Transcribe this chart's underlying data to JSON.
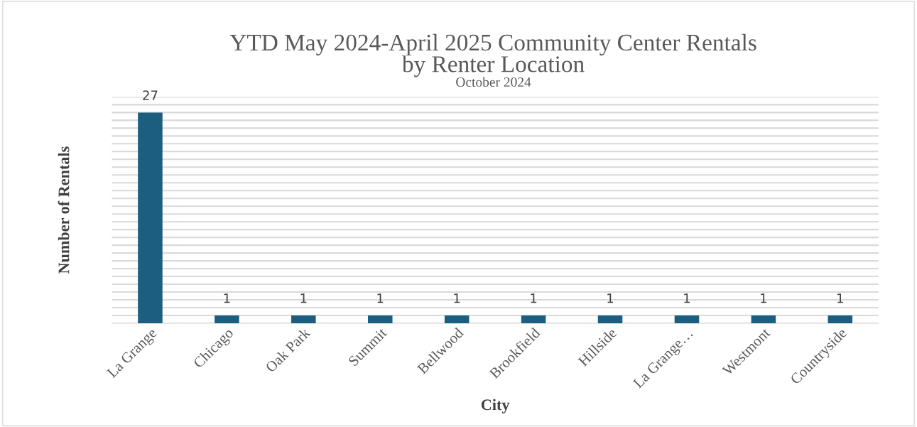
{
  "chart_data": {
    "type": "bar",
    "title": "YTD May 2024-April 2025 Community Center Rentals\nby Renter Location",
    "subtitle": "October 2024",
    "xlabel": "City",
    "ylabel": "Number of Rentals",
    "categories": [
      "La Grange",
      "Chicago",
      "Oak Park",
      "Summit",
      "Bellwood",
      "Brookfield",
      "Hillside",
      "La Grange…",
      "Westmont",
      "Countryside"
    ],
    "values": [
      27,
      1,
      1,
      1,
      1,
      1,
      1,
      1,
      1,
      1
    ],
    "color": "#1b5e7f",
    "ylim": [
      0,
      29
    ],
    "yticks": [
      {
        "value": 0,
        "label": null
      },
      {
        "value": 1,
        "label": null
      },
      {
        "value": 2,
        "label": null
      },
      {
        "value": 3,
        "label": null
      },
      {
        "value": 4,
        "label": null
      },
      {
        "value": 5,
        "label": null
      },
      {
        "value": 6,
        "label": null
      },
      {
        "value": 7,
        "label": null
      },
      {
        "value": 8,
        "label": null
      },
      {
        "value": 9,
        "label": null
      },
      {
        "value": 10,
        "label": null
      },
      {
        "value": 11,
        "label": null
      },
      {
        "value": 12,
        "label": null
      },
      {
        "value": 13,
        "label": null
      },
      {
        "value": 14,
        "label": null
      },
      {
        "value": 15,
        "label": null
      },
      {
        "value": 16,
        "label": null
      },
      {
        "value": 17,
        "label": null
      },
      {
        "value": 18,
        "label": null
      },
      {
        "value": 19,
        "label": null
      },
      {
        "value": 20,
        "label": null
      },
      {
        "value": 21,
        "label": null
      },
      {
        "value": 22,
        "label": null
      },
      {
        "value": 23,
        "label": null
      },
      {
        "value": 24,
        "label": null
      },
      {
        "value": 25,
        "label": null
      },
      {
        "value": 26,
        "label": null
      },
      {
        "value": 27,
        "label": null
      },
      {
        "value": 28,
        "label": null
      },
      {
        "value": 29,
        "label": null
      }
    ],
    "tick_labels": "x",
    "grid": "y",
    "data_labels": true,
    "legend": false
  }
}
